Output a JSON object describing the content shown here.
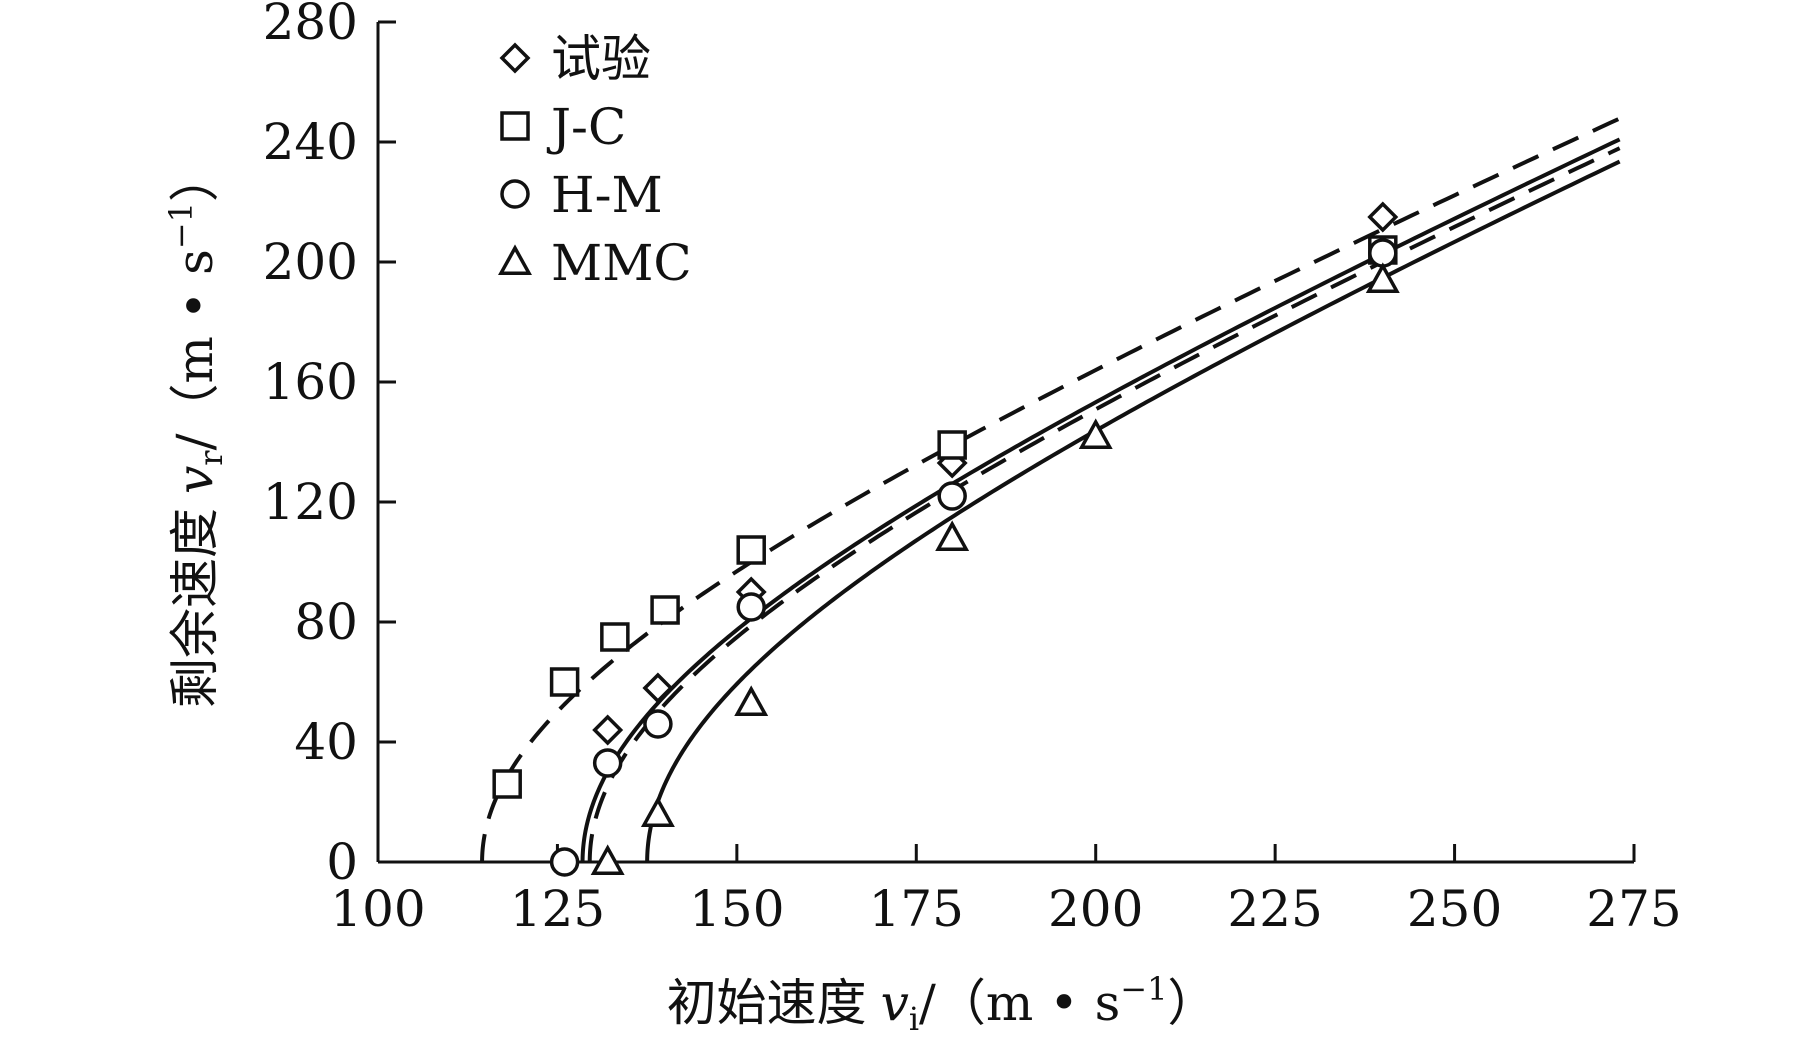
{
  "chart_data": {
    "type": "scatter",
    "xlabel": {
      "prefix": "初始速度",
      "var": "v",
      "sub": "i",
      "unit_open": "/（m • s",
      "sup": "−1",
      "unit_close": "）"
    },
    "ylabel": {
      "prefix": "剩余速度",
      "var": "v",
      "sub": "r",
      "unit_open": "/（m • s",
      "sup": "−1",
      "unit_close": "）"
    },
    "xlim": [
      100,
      275
    ],
    "ylim": [
      0,
      280
    ],
    "xticks": [
      "100",
      "125",
      "150",
      "175",
      "200",
      "225",
      "250",
      "275"
    ],
    "yticks": [
      "0",
      "40",
      "80",
      "120",
      "160",
      "200",
      "240",
      "280"
    ],
    "grid": false,
    "legend_position": "top-left",
    "series": [
      {
        "name": "试验",
        "marker": "diamond",
        "points": [
          [
            132,
            44
          ],
          [
            139,
            58
          ],
          [
            152,
            90
          ],
          [
            180,
            133
          ],
          [
            240,
            215
          ]
        ]
      },
      {
        "name": "J-C",
        "marker": "square",
        "points": [
          [
            118,
            26
          ],
          [
            126,
            60
          ],
          [
            133,
            75
          ],
          [
            140,
            84
          ],
          [
            152,
            104
          ],
          [
            180,
            139
          ],
          [
            240,
            204
          ]
        ]
      },
      {
        "name": "H-M",
        "marker": "circle",
        "points": [
          [
            126,
            0
          ],
          [
            132,
            33
          ],
          [
            139,
            46
          ],
          [
            152,
            85
          ],
          [
            180,
            122
          ],
          [
            240,
            203
          ]
        ]
      },
      {
        "name": "MMC",
        "marker": "triangle",
        "points": [
          [
            132,
            0
          ],
          [
            139,
            16
          ],
          [
            152,
            53
          ],
          [
            180,
            108
          ],
          [
            200,
            142
          ],
          [
            240,
            194
          ]
        ]
      }
    ],
    "curves": [
      {
        "style": "dashed",
        "vbl": 114.5,
        "a": 1.0,
        "p": 2.0,
        "x_end": 273
      },
      {
        "style": "solid",
        "vbl": 128.5,
        "a": 1.0,
        "p": 2.0,
        "x_end": 273
      },
      {
        "style": "dashed",
        "vbl": 129.5,
        "a": 0.99,
        "p": 2.0,
        "x_end": 273
      },
      {
        "style": "solid",
        "vbl": 137.5,
        "a": 0.99,
        "p": 2.0,
        "x_end": 273
      }
    ]
  }
}
